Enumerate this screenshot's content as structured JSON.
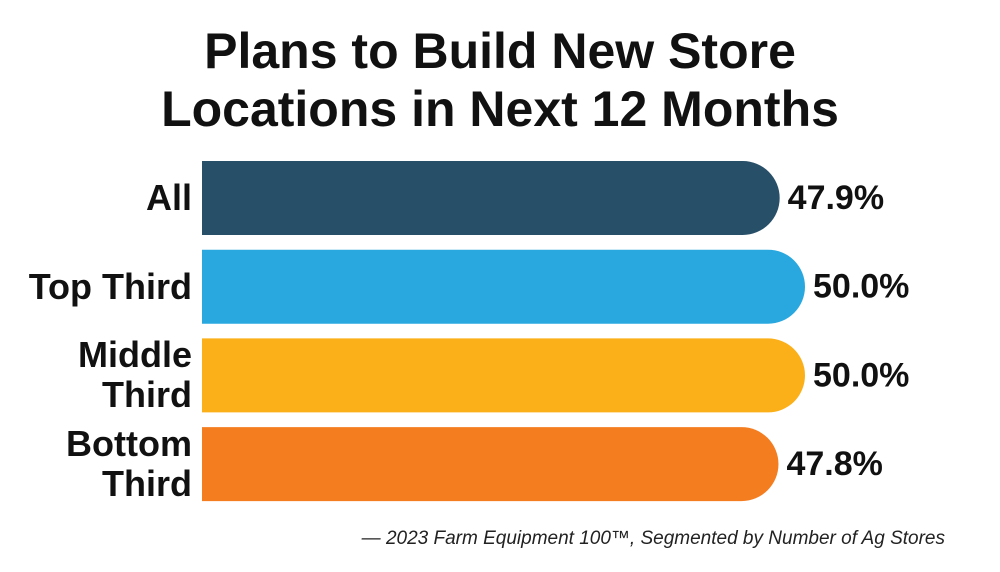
{
  "chart_data": {
    "type": "bar",
    "orientation": "horizontal",
    "title": "Plans to Build New Store Locations in Next 12 Months",
    "categories": [
      "All",
      "Top Third",
      "Middle Third",
      "Bottom Third"
    ],
    "values": [
      47.9,
      50.0,
      50.0,
      47.8
    ],
    "value_labels": [
      "47.9%",
      "50.0%",
      "50.0%",
      "47.8%"
    ],
    "colors": [
      "#284f68",
      "#29a8e0",
      "#fbb01a",
      "#f47d20"
    ],
    "source": "— 2023 Farm Equipment 100™, Segmented by Number of Ag Stores"
  }
}
